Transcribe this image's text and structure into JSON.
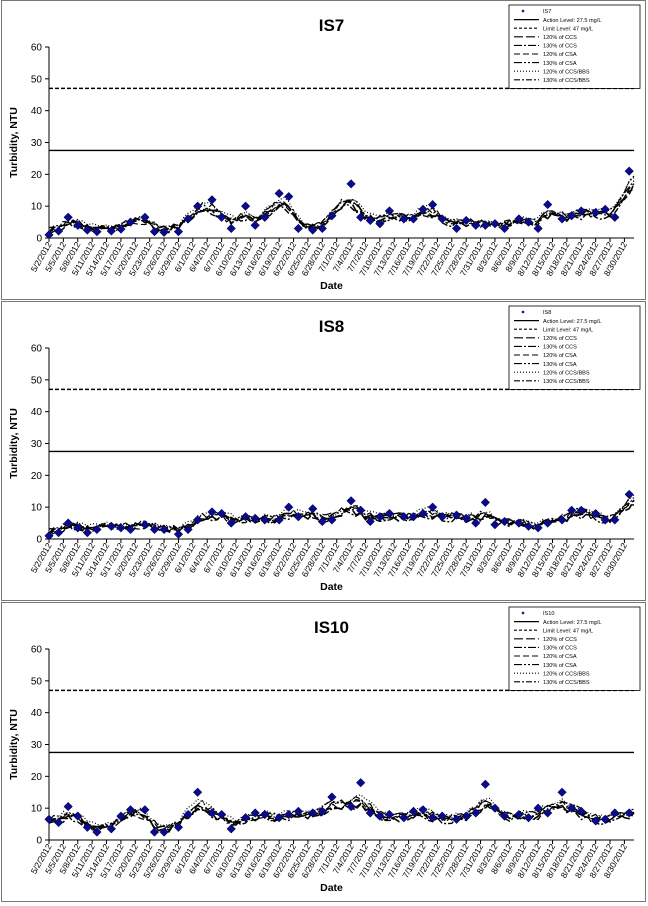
{
  "common": {
    "xlabel": "Date",
    "ylabel": "Turbidity, NTU",
    "yticks": [
      "0",
      "10",
      "20",
      "30",
      "40",
      "50",
      "60"
    ],
    "date_ticks": [
      "5/2/2012",
      "5/5/2012",
      "5/8/2012",
      "5/11/2012",
      "5/14/2012",
      "5/17/2012",
      "5/20/2012",
      "5/23/2012",
      "5/26/2012",
      "5/29/2012",
      "6/1/2012",
      "6/4/2012",
      "6/7/2012",
      "6/10/2012",
      "6/13/2012",
      "6/16/2012",
      "6/19/2012",
      "6/22/2012",
      "6/25/2012",
      "6/28/2012",
      "7/1/2012",
      "7/4/2012",
      "7/7/2012",
      "7/10/2012",
      "7/13/2012",
      "7/16/2012",
      "7/19/2012",
      "7/22/2012",
      "7/25/2012",
      "7/28/2012",
      "7/31/2012",
      "8/3/2012",
      "8/6/2012",
      "8/9/2012",
      "8/12/2012",
      "8/15/2012",
      "8/18/2012",
      "8/21/2012",
      "8/24/2012",
      "8/27/2012",
      "8/30/2012"
    ]
  },
  "chart_data": [
    {
      "type": "line",
      "title": "IS7",
      "xlabel": "Date",
      "ylabel": "Turbidity, NTU",
      "ylim": [
        0,
        60
      ],
      "xlim": [
        "2012-05-02",
        "2012-09-01"
      ],
      "grid": false,
      "legend_position": "top-right",
      "legend": [
        "IS7",
        "Action Level: 27.5 mg/L",
        "Limit Level: 47 mg/L",
        "120% of CCS",
        "130% of CCS",
        "120% of CSA",
        "130% of CSA",
        "120% of CCS/BBS",
        "130% of CCS/BBS"
      ],
      "reference_lines": [
        {
          "label": "Action Level: 27.5 mg/L",
          "value": 27.5
        },
        {
          "label": "Limit Level: 47 mg/L",
          "value": 47
        }
      ],
      "observed": [
        [
          "2012-05-02",
          1.0
        ],
        [
          "2012-05-04",
          2.2
        ],
        [
          "2012-05-06",
          6.5
        ],
        [
          "2012-05-08",
          4.0
        ],
        [
          "2012-05-10",
          2.5
        ],
        [
          "2012-05-12",
          2.0
        ],
        [
          "2012-05-15",
          2.2
        ],
        [
          "2012-05-17",
          2.8
        ],
        [
          "2012-05-19",
          5.0
        ],
        [
          "2012-05-22",
          6.5
        ],
        [
          "2012-05-24",
          2.0
        ],
        [
          "2012-05-26",
          1.8
        ],
        [
          "2012-05-29",
          2.0
        ],
        [
          "2012-05-31",
          6.0
        ],
        [
          "2012-06-02",
          10.0
        ],
        [
          "2012-06-05",
          12.0
        ],
        [
          "2012-06-07",
          6.5
        ],
        [
          "2012-06-09",
          3.0
        ],
        [
          "2012-06-12",
          10.0
        ],
        [
          "2012-06-14",
          4.0
        ],
        [
          "2012-06-16",
          6.5
        ],
        [
          "2012-06-19",
          14.0
        ],
        [
          "2012-06-21",
          13.0
        ],
        [
          "2012-06-23",
          3.0
        ],
        [
          "2012-06-26",
          2.5
        ],
        [
          "2012-06-28",
          3.0
        ],
        [
          "2012-06-30",
          7.0
        ],
        [
          "2012-07-04",
          17.0
        ],
        [
          "2012-07-06",
          6.5
        ],
        [
          "2012-07-08",
          5.5
        ],
        [
          "2012-07-10",
          4.5
        ],
        [
          "2012-07-12",
          8.5
        ],
        [
          "2012-07-15",
          6.0
        ],
        [
          "2012-07-17",
          6.0
        ],
        [
          "2012-07-19",
          9.0
        ],
        [
          "2012-07-21",
          10.5
        ],
        [
          "2012-07-23",
          6.0
        ],
        [
          "2012-07-26",
          3.0
        ],
        [
          "2012-07-28",
          5.5
        ],
        [
          "2012-07-30",
          4.0
        ],
        [
          "2012-08-01",
          4.0
        ],
        [
          "2012-08-03",
          4.5
        ],
        [
          "2012-08-05",
          3.0
        ],
        [
          "2012-08-08",
          6.0
        ],
        [
          "2012-08-10",
          5.0
        ],
        [
          "2012-08-12",
          3.0
        ],
        [
          "2012-08-14",
          10.5
        ],
        [
          "2012-08-17",
          6.0
        ],
        [
          "2012-08-19",
          7.0
        ],
        [
          "2012-08-21",
          8.5
        ],
        [
          "2012-08-24",
          8.0
        ],
        [
          "2012-08-26",
          9.0
        ],
        [
          "2012-08-28",
          6.5
        ],
        [
          "2012-08-31",
          21.0
        ]
      ]
    },
    {
      "type": "line",
      "title": "IS8",
      "xlabel": "Date",
      "ylabel": "Turbidity, NTU",
      "ylim": [
        0,
        60
      ],
      "xlim": [
        "2012-05-02",
        "2012-09-01"
      ],
      "grid": false,
      "legend_position": "top-right",
      "legend": [
        "IS8",
        "Action Level: 27.5 mg/L",
        "Limit Level: 47 mg/L",
        "120% of CCS",
        "130% of CCS",
        "120% of CSA",
        "130% of CSA",
        "120% of CCS/BBS",
        "130% of CCS/BBS"
      ],
      "reference_lines": [
        {
          "label": "Action Level: 27.5 mg/L",
          "value": 27.5
        },
        {
          "label": "Limit Level: 47 mg/L",
          "value": 47
        }
      ],
      "observed": [
        [
          "2012-05-02",
          1.0
        ],
        [
          "2012-05-04",
          2.0
        ],
        [
          "2012-05-06",
          5.0
        ],
        [
          "2012-05-08",
          3.5
        ],
        [
          "2012-05-10",
          2.0
        ],
        [
          "2012-05-12",
          3.0
        ],
        [
          "2012-05-15",
          4.0
        ],
        [
          "2012-05-17",
          3.5
        ],
        [
          "2012-05-19",
          3.0
        ],
        [
          "2012-05-22",
          4.5
        ],
        [
          "2012-05-24",
          3.0
        ],
        [
          "2012-05-26",
          3.0
        ],
        [
          "2012-05-29",
          1.5
        ],
        [
          "2012-05-31",
          3.0
        ],
        [
          "2012-06-02",
          6.0
        ],
        [
          "2012-06-05",
          8.5
        ],
        [
          "2012-06-07",
          8.0
        ],
        [
          "2012-06-09",
          5.0
        ],
        [
          "2012-06-12",
          7.0
        ],
        [
          "2012-06-14",
          6.5
        ],
        [
          "2012-06-16",
          6.0
        ],
        [
          "2012-06-19",
          6.0
        ],
        [
          "2012-06-21",
          10.0
        ],
        [
          "2012-06-23",
          7.0
        ],
        [
          "2012-06-26",
          9.5
        ],
        [
          "2012-06-28",
          5.5
        ],
        [
          "2012-06-30",
          6.0
        ],
        [
          "2012-07-04",
          12.0
        ],
        [
          "2012-07-06",
          9.0
        ],
        [
          "2012-07-08",
          5.5
        ],
        [
          "2012-07-10",
          7.0
        ],
        [
          "2012-07-12",
          8.0
        ],
        [
          "2012-07-15",
          7.0
        ],
        [
          "2012-07-17",
          7.0
        ],
        [
          "2012-07-19",
          8.0
        ],
        [
          "2012-07-21",
          10.0
        ],
        [
          "2012-07-23",
          7.0
        ],
        [
          "2012-07-26",
          7.5
        ],
        [
          "2012-07-28",
          6.5
        ],
        [
          "2012-07-30",
          5.0
        ],
        [
          "2012-08-01",
          11.5
        ],
        [
          "2012-08-03",
          4.5
        ],
        [
          "2012-08-05",
          5.5
        ],
        [
          "2012-08-08",
          5.0
        ],
        [
          "2012-08-10",
          4.0
        ],
        [
          "2012-08-12",
          3.5
        ],
        [
          "2012-08-14",
          5.0
        ],
        [
          "2012-08-17",
          6.0
        ],
        [
          "2012-08-19",
          9.0
        ],
        [
          "2012-08-21",
          9.0
        ],
        [
          "2012-08-24",
          8.0
        ],
        [
          "2012-08-26",
          6.0
        ],
        [
          "2012-08-28",
          6.0
        ],
        [
          "2012-08-31",
          14.0
        ]
      ]
    },
    {
      "type": "line",
      "title": "IS10",
      "xlabel": "Date",
      "ylabel": "Turbidity, NTU",
      "ylim": [
        0,
        60
      ],
      "xlim": [
        "2012-05-02",
        "2012-09-01"
      ],
      "grid": false,
      "legend_position": "top-right",
      "legend": [
        "IS10",
        "Action Level: 27.5 mg/L",
        "Limit Level: 47 mg/L",
        "120% of CCS",
        "130% of CCS",
        "120% of CSA",
        "130% of CSA",
        "120% of CCS/BBS",
        "130% of CCS/BBS"
      ],
      "reference_lines": [
        {
          "label": "Action Level: 27.5 mg/L",
          "value": 27.5
        },
        {
          "label": "Limit Level: 47 mg/L",
          "value": 47
        }
      ],
      "observed": [
        [
          "2012-05-02",
          6.5
        ],
        [
          "2012-05-04",
          5.5
        ],
        [
          "2012-05-06",
          10.5
        ],
        [
          "2012-05-08",
          7.5
        ],
        [
          "2012-05-10",
          4.0
        ],
        [
          "2012-05-12",
          2.5
        ],
        [
          "2012-05-15",
          3.5
        ],
        [
          "2012-05-17",
          7.5
        ],
        [
          "2012-05-19",
          9.5
        ],
        [
          "2012-05-22",
          9.5
        ],
        [
          "2012-05-24",
          2.5
        ],
        [
          "2012-05-26",
          2.5
        ],
        [
          "2012-05-29",
          4.0
        ],
        [
          "2012-05-31",
          8.0
        ],
        [
          "2012-06-02",
          15.0
        ],
        [
          "2012-06-05",
          8.5
        ],
        [
          "2012-06-07",
          8.0
        ],
        [
          "2012-06-09",
          3.5
        ],
        [
          "2012-06-12",
          7.0
        ],
        [
          "2012-06-14",
          8.5
        ],
        [
          "2012-06-16",
          8.0
        ],
        [
          "2012-06-19",
          7.0
        ],
        [
          "2012-06-21",
          8.0
        ],
        [
          "2012-06-23",
          9.0
        ],
        [
          "2012-06-26",
          8.5
        ],
        [
          "2012-06-28",
          9.0
        ],
        [
          "2012-06-30",
          13.5
        ],
        [
          "2012-07-04",
          10.5
        ],
        [
          "2012-07-06",
          18.0
        ],
        [
          "2012-07-08",
          8.5
        ],
        [
          "2012-07-10",
          7.5
        ],
        [
          "2012-07-12",
          8.0
        ],
        [
          "2012-07-15",
          7.0
        ],
        [
          "2012-07-17",
          9.0
        ],
        [
          "2012-07-19",
          9.5
        ],
        [
          "2012-07-21",
          7.0
        ],
        [
          "2012-07-23",
          7.5
        ],
        [
          "2012-07-26",
          6.5
        ],
        [
          "2012-07-28",
          7.5
        ],
        [
          "2012-07-30",
          8.5
        ],
        [
          "2012-08-01",
          17.5
        ],
        [
          "2012-08-03",
          10.0
        ],
        [
          "2012-08-05",
          7.5
        ],
        [
          "2012-08-08",
          8.0
        ],
        [
          "2012-08-10",
          7.0
        ],
        [
          "2012-08-12",
          10.0
        ],
        [
          "2012-08-14",
          8.5
        ],
        [
          "2012-08-17",
          15.0
        ],
        [
          "2012-08-19",
          10.0
        ],
        [
          "2012-08-21",
          9.0
        ],
        [
          "2012-08-24",
          6.0
        ],
        [
          "2012-08-26",
          6.5
        ],
        [
          "2012-08-28",
          8.5
        ],
        [
          "2012-08-31",
          8.5
        ]
      ]
    }
  ]
}
